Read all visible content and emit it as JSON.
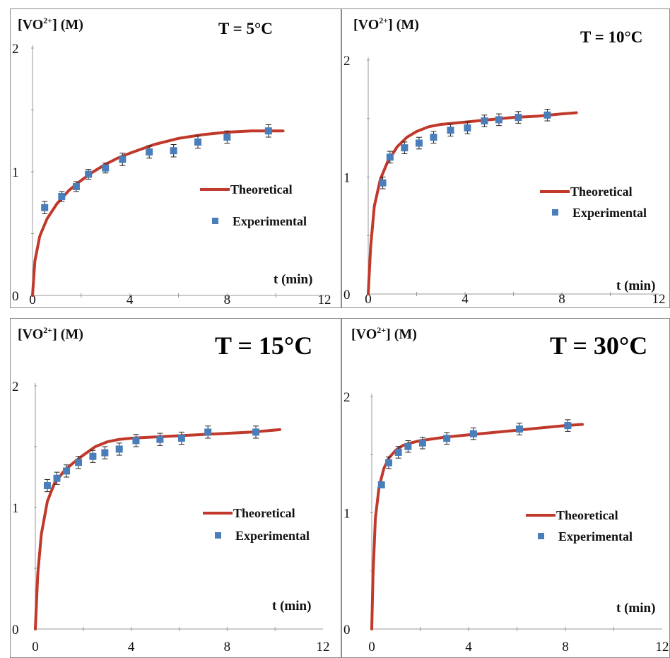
{
  "chart_data": [
    {
      "type": "line",
      "title": "T = 5°C",
      "ylabel": "[VO²⁺] (M)",
      "xlabel": "t (min)",
      "xlim": [
        0,
        12
      ],
      "ylim": [
        0,
        2
      ],
      "xticks": [
        "0",
        "4",
        "8",
        "12"
      ],
      "yticks": [
        "0",
        "1",
        "2"
      ],
      "legend": "right",
      "colors": {
        "theoretical": "#c0392b",
        "experimental": "#4a7ebb"
      },
      "series": [
        {
          "name": "Theoretical",
          "x": [
            0,
            0.1,
            0.3,
            0.6,
            1,
            1.5,
            2,
            2.5,
            3,
            3.5,
            4,
            5,
            6,
            7,
            8,
            9,
            10.3
          ],
          "y": [
            0,
            0.28,
            0.48,
            0.62,
            0.74,
            0.85,
            0.93,
            1.0,
            1.06,
            1.11,
            1.15,
            1.22,
            1.27,
            1.3,
            1.32,
            1.33,
            1.33
          ]
        },
        {
          "name": "Experimental",
          "x": [
            0.5,
            1.2,
            1.8,
            2.3,
            3.0,
            3.7,
            4.8,
            5.8,
            6.8,
            8.0,
            9.7
          ],
          "y": [
            0.71,
            0.8,
            0.88,
            0.98,
            1.03,
            1.1,
            1.16,
            1.17,
            1.24,
            1.28,
            1.33
          ],
          "err": [
            0.05,
            0.04,
            0.04,
            0.04,
            0.04,
            0.05,
            0.05,
            0.05,
            0.05,
            0.05,
            0.05
          ]
        }
      ]
    },
    {
      "type": "line",
      "title": "T = 10°C",
      "ylabel": "[VO²⁺] (M)",
      "xlabel": "t (min)",
      "xlim": [
        0,
        12
      ],
      "ylim": [
        0,
        2
      ],
      "xticks": [
        "0",
        "4",
        "8",
        "12"
      ],
      "yticks": [
        "0",
        "1",
        "2"
      ],
      "legend": "right",
      "colors": {
        "theoretical": "#c0392b",
        "experimental": "#4a7ebb"
      },
      "series": [
        {
          "name": "Theoretical",
          "x": [
            0,
            0.1,
            0.25,
            0.5,
            0.8,
            1.2,
            1.6,
            2,
            2.5,
            3,
            3.5,
            4,
            5,
            6,
            7,
            8,
            8.6
          ],
          "y": [
            0,
            0.4,
            0.75,
            0.98,
            1.13,
            1.26,
            1.34,
            1.39,
            1.43,
            1.45,
            1.46,
            1.47,
            1.49,
            1.51,
            1.52,
            1.54,
            1.55
          ]
        },
        {
          "name": "Experimental",
          "x": [
            0.6,
            0.9,
            1.5,
            2.1,
            2.7,
            3.4,
            4.1,
            4.8,
            5.4,
            6.2,
            7.4
          ],
          "y": [
            0.95,
            1.17,
            1.25,
            1.29,
            1.34,
            1.4,
            1.42,
            1.48,
            1.49,
            1.51,
            1.53
          ],
          "err": [
            0.05,
            0.05,
            0.05,
            0.05,
            0.05,
            0.05,
            0.05,
            0.05,
            0.05,
            0.05,
            0.05
          ]
        }
      ]
    },
    {
      "type": "line",
      "title": "T = 15°C",
      "ylabel": "[VO²⁺] (M)",
      "xlabel": "t (min)",
      "xlim": [
        0,
        12
      ],
      "ylim": [
        0,
        2
      ],
      "xticks": [
        "0",
        "4",
        "8",
        "12"
      ],
      "yticks": [
        "0",
        "1",
        "2"
      ],
      "legend": "right",
      "colors": {
        "theoretical": "#c0392b",
        "experimental": "#4a7ebb"
      },
      "series": [
        {
          "name": "Theoretical",
          "x": [
            0,
            0.1,
            0.25,
            0.5,
            0.8,
            1.2,
            1.6,
            2,
            2.5,
            3,
            3.5,
            4,
            5,
            6,
            7,
            8,
            9,
            10.2
          ],
          "y": [
            0,
            0.45,
            0.78,
            1.05,
            1.2,
            1.3,
            1.37,
            1.43,
            1.5,
            1.54,
            1.56,
            1.57,
            1.58,
            1.59,
            1.6,
            1.61,
            1.62,
            1.64
          ]
        },
        {
          "name": "Experimental",
          "x": [
            0.5,
            0.9,
            1.3,
            1.8,
            2.4,
            2.9,
            3.5,
            4.2,
            5.2,
            6.1,
            7.2,
            9.2
          ],
          "y": [
            1.18,
            1.24,
            1.3,
            1.37,
            1.42,
            1.45,
            1.48,
            1.55,
            1.56,
            1.57,
            1.62,
            1.62
          ],
          "err": [
            0.05,
            0.05,
            0.05,
            0.05,
            0.05,
            0.05,
            0.05,
            0.05,
            0.05,
            0.05,
            0.05,
            0.05
          ]
        }
      ]
    },
    {
      "type": "line",
      "title": "T = 30°C",
      "ylabel": "[VO²⁺] (M)",
      "xlabel": "t (min)",
      "xlim": [
        0,
        12
      ],
      "ylim": [
        0,
        2
      ],
      "xticks": [
        "0",
        "4",
        "8",
        "12"
      ],
      "yticks": [
        "0",
        "1",
        "2"
      ],
      "legend": "right",
      "colors": {
        "theoretical": "#c0392b",
        "experimental": "#4a7ebb"
      },
      "series": [
        {
          "name": "Theoretical",
          "x": [
            0,
            0.05,
            0.15,
            0.3,
            0.5,
            0.7,
            1,
            1.3,
            1.6,
            2,
            3,
            4,
            5,
            6,
            7,
            8,
            8.7
          ],
          "y": [
            0,
            0.45,
            0.95,
            1.22,
            1.38,
            1.47,
            1.54,
            1.58,
            1.6,
            1.62,
            1.65,
            1.67,
            1.69,
            1.71,
            1.73,
            1.75,
            1.76
          ]
        },
        {
          "name": "Experimental",
          "x": [
            0.4,
            0.7,
            1.1,
            1.5,
            2.1,
            3.1,
            4.2,
            6.1,
            8.1
          ],
          "y": [
            1.24,
            1.43,
            1.52,
            1.57,
            1.6,
            1.64,
            1.68,
            1.72,
            1.75
          ],
          "err": [
            0.0,
            0.05,
            0.05,
            0.05,
            0.05,
            0.05,
            0.05,
            0.05,
            0.05
          ]
        }
      ]
    }
  ]
}
